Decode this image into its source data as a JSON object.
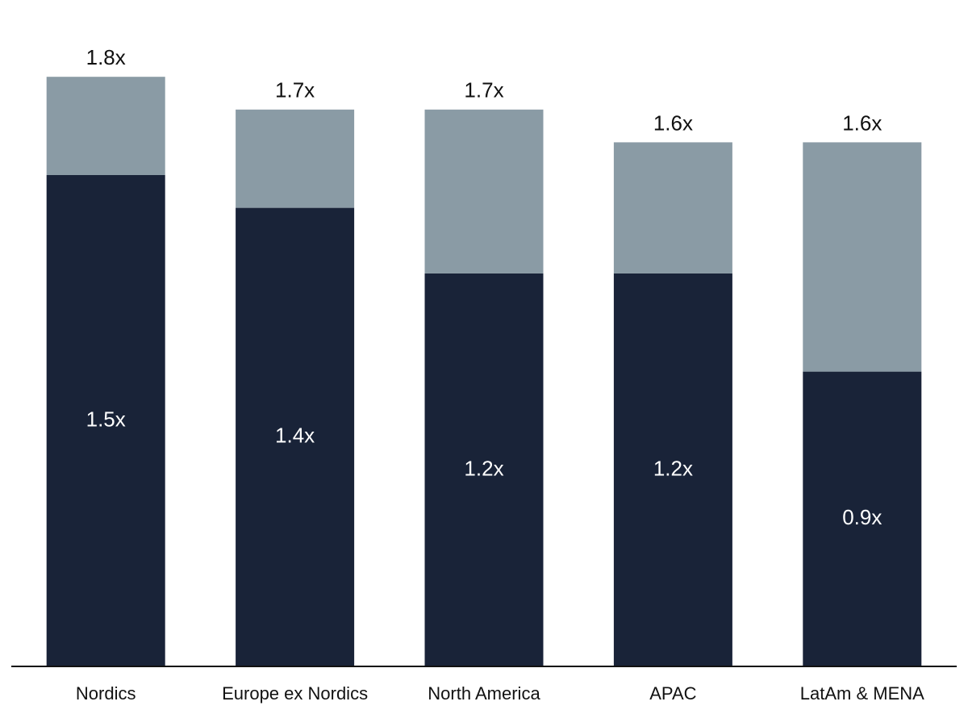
{
  "chart_data": {
    "type": "stacked_bar",
    "categories": [
      "Nordics",
      "Europe ex Nordics",
      "North America",
      "APAC",
      "LatAm & MENA"
    ],
    "series": [
      {
        "color": "#192338",
        "values": [
          1.5,
          1.4,
          1.2,
          1.2,
          0.9
        ],
        "value_labels": [
          "1.5x",
          "1.4x",
          "1.2x",
          "1.2x",
          "0.9x"
        ]
      },
      {
        "color": "#8a9ba5",
        "values": [
          0.3,
          0.3,
          0.5,
          0.4,
          0.7
        ]
      }
    ],
    "totals": [
      1.8,
      1.7,
      1.7,
      1.6,
      1.6
    ],
    "total_labels": [
      "1.8x",
      "1.7x",
      "1.7x",
      "1.6x",
      "1.6x"
    ],
    "ylim": [
      0,
      2
    ]
  }
}
